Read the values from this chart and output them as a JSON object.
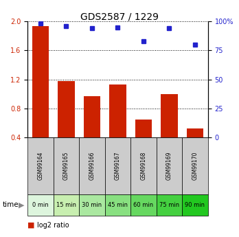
{
  "title": "GDS2587 / 1229",
  "samples": [
    "GSM99164",
    "GSM99165",
    "GSM99166",
    "GSM99167",
    "GSM99168",
    "GSM99169",
    "GSM99170"
  ],
  "time_labels": [
    "0 min",
    "15 min",
    "30 min",
    "45 min",
    "60 min",
    "75 min",
    "90 min"
  ],
  "log2_ratio": [
    1.93,
    1.18,
    0.97,
    1.13,
    0.65,
    1.0,
    0.52
  ],
  "percentile_rank": [
    98,
    96,
    94,
    95,
    83,
    94,
    80
  ],
  "bar_color": "#cc2200",
  "dot_color": "#2222cc",
  "ylim_left": [
    0.4,
    2.0
  ],
  "ylim_right": [
    0,
    100
  ],
  "yticks_left": [
    0.4,
    0.8,
    1.2,
    1.6,
    2.0
  ],
  "yticks_right": [
    0,
    25,
    50,
    75,
    100
  ],
  "grid_color": "#000000",
  "sample_bg": "#cccccc",
  "time_bg_colors": [
    "#ddf5dd",
    "#c8efb0",
    "#aae8a0",
    "#88e080",
    "#66d860",
    "#44d040",
    "#22c820"
  ],
  "bar_width": 0.65,
  "fig_width": 3.48,
  "fig_height": 3.45,
  "title_fontsize": 10,
  "tick_fontsize": 7,
  "legend_fontsize": 7,
  "sample_fontsize": 5.5,
  "time_fontsize": 6
}
